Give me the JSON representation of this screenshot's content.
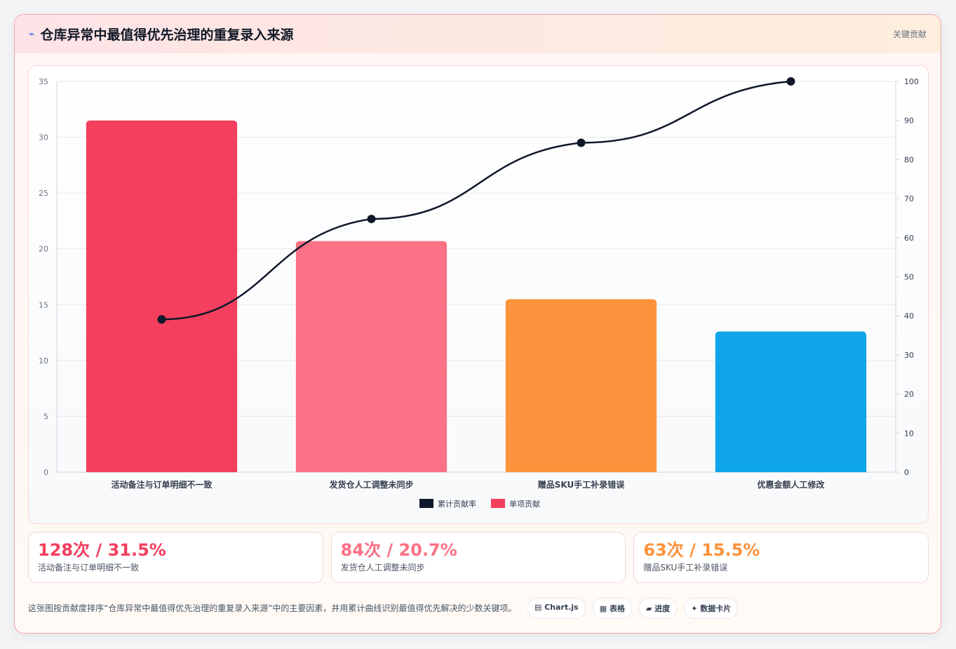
{
  "header": {
    "icon": "⌁",
    "title": "仓库异常中最值得优先治理的重复录入来源",
    "tag": "关键贡献"
  },
  "chart_data": {
    "type": "bar",
    "categories": [
      "活动备注与订单明细不一致",
      "发货仓人工调整未同步",
      "赠品SKU手工补录错误",
      "优惠金额人工修改"
    ],
    "series": [
      {
        "name": "单项贡献",
        "type": "bar",
        "values": [
          31.5,
          20.7,
          15.5,
          12.6
        ],
        "colors": [
          "#f43f5e",
          "#fb7185",
          "#fb923c",
          "#0ea5e9"
        ],
        "axis": "left"
      },
      {
        "name": "累计贡献率",
        "type": "line",
        "values": [
          39.1,
          64.8,
          84.3,
          100
        ],
        "color": "#0f172a",
        "axis": "right"
      }
    ],
    "ylim_left": [
      0,
      35
    ],
    "yticks_left": [
      0,
      5,
      10,
      15,
      20,
      25,
      30,
      35
    ],
    "ylim_right": [
      0,
      100
    ],
    "yticks_right": [
      0,
      10,
      20,
      30,
      40,
      50,
      60,
      70,
      80,
      90,
      100
    ],
    "legend": [
      {
        "label": "累计贡献率",
        "color": "#0f172a"
      },
      {
        "label": "单项贡献",
        "color": "#f43f5e"
      }
    ],
    "legend_position": "bottom",
    "grid": true
  },
  "stats": [
    {
      "value": "128次 / 31.5%",
      "label": "活动备注与订单明细不一致",
      "color": "#f43f5e"
    },
    {
      "value": "84次 / 20.7%",
      "label": "发货仓人工调整未同步",
      "color": "#fb7185"
    },
    {
      "value": "63次 / 15.5%",
      "label": "赠品SKU手工补录错误",
      "color": "#fb923c"
    }
  ],
  "footer": {
    "description": "这张图按贡献度排序“仓库异常中最值得优先治理的重复录入来源”中的主要因素，并用累计曲线识别最值得优先解决的少数关键项。",
    "chips": [
      "▤ Chart.js",
      "▦ 表格",
      "▰ 进度",
      "✦ 数据卡片"
    ]
  }
}
